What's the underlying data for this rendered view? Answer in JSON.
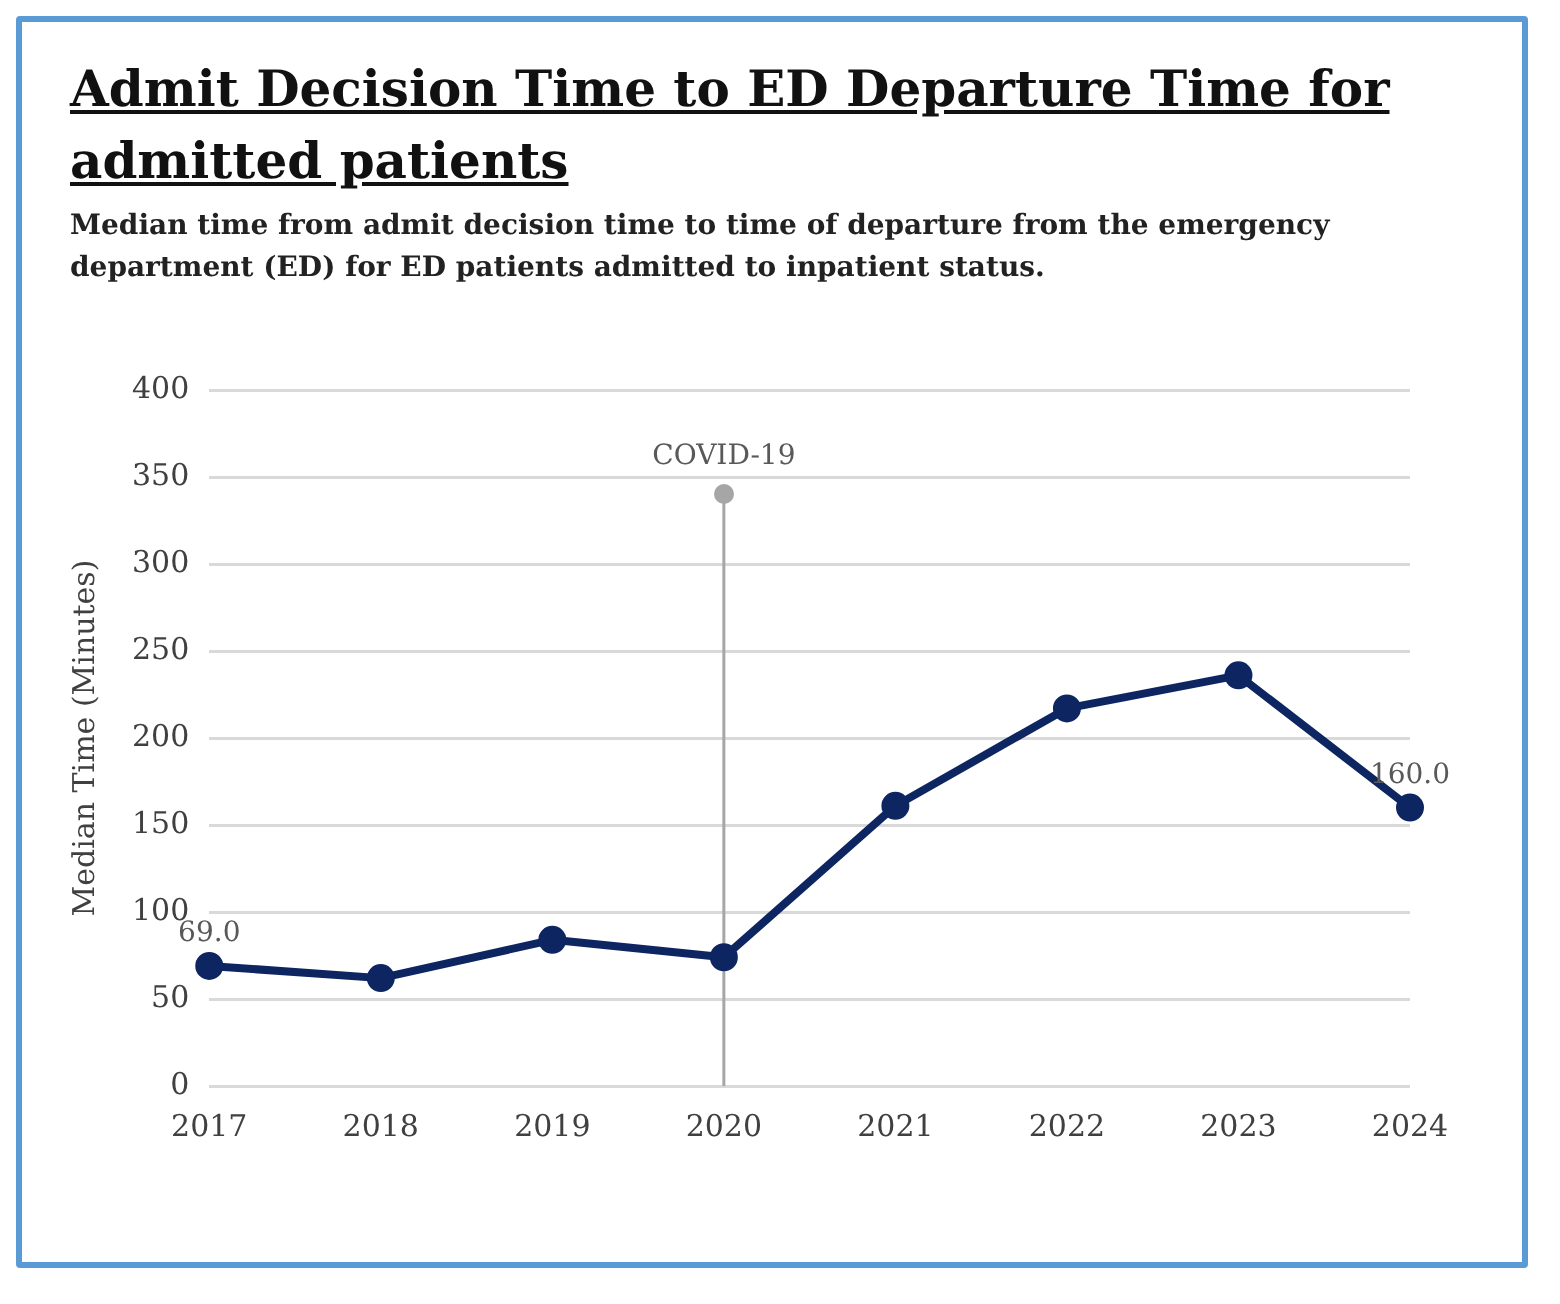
{
  "chart_data": {
    "type": "line",
    "title": "Admit Decision Time to ED Departure Time for admitted patients",
    "subtitle": "Median time from admit decision time to time of departure from the emergency department (ED) for ED patients admitted to inpatient status.",
    "ylabel": "Median Time (Minutes)",
    "categories": [
      "2017",
      "2018",
      "2019",
      "2020",
      "2021",
      "2022",
      "2023",
      "2024"
    ],
    "series": [
      {
        "color": "#0d2561",
        "values": [
          69,
          62,
          84,
          74,
          161,
          217,
          236,
          160
        ],
        "value_labels": [
          "69.0",
          null,
          null,
          null,
          null,
          null,
          null,
          "160.0"
        ]
      }
    ],
    "ylim": [
      0,
      400
    ],
    "yticks": [
      0,
      50,
      100,
      150,
      200,
      250,
      300,
      350,
      400
    ],
    "grid": "y",
    "legend": false,
    "marker": "circle",
    "line_style": "solid",
    "ref_lines": [
      {
        "axis": "x",
        "value": "2020",
        "label": "COVID-19",
        "color": "#a6a6a6"
      }
    ]
  }
}
